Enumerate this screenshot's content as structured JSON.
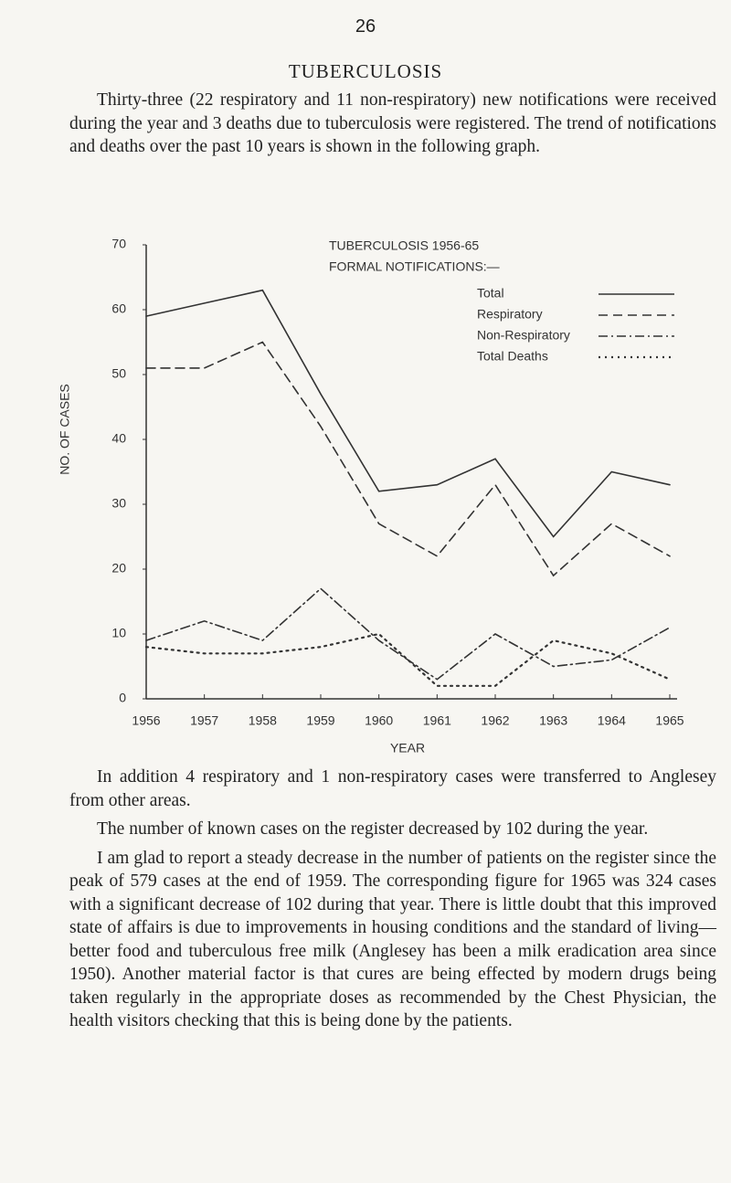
{
  "page_number": "26",
  "title": "TUBERCULOSIS",
  "intro": "Thirty-three (22 respiratory and 11 non-respiratory) new notifications were received during the year and 3 deaths due to tuberculosis were registered. The trend of notifications and deaths over the past 10 years is shown in the following graph.",
  "chart_data": {
    "type": "line",
    "title": "TUBERCULOSIS 1956-65",
    "subtitle": "FORMAL NOTIFICATIONS:—",
    "x_label": "YEAR",
    "y_label": "NO. OF CASES",
    "x": [
      1956,
      1957,
      1958,
      1959,
      1960,
      1961,
      1962,
      1963,
      1964,
      1965
    ],
    "xlim": [
      1956,
      1965
    ],
    "xticks": [
      1956,
      1957,
      1958,
      1959,
      1960,
      1961,
      1962,
      1963,
      1964,
      1965
    ],
    "ylim": [
      0,
      70
    ],
    "yticks": [
      0,
      10,
      20,
      30,
      40,
      50,
      60,
      70
    ],
    "legend": "upper right",
    "series": [
      {
        "name": "Total",
        "color": "#333333",
        "dash": "solid",
        "values": [
          59,
          61,
          63,
          47,
          32,
          33,
          37,
          25,
          35,
          33
        ]
      },
      {
        "name": "Respiratory",
        "color": "#333333",
        "dash": "dashed",
        "values": [
          51,
          51,
          55,
          42,
          27,
          22,
          33,
          19,
          27,
          22
        ]
      },
      {
        "name": "Non-Respiratory",
        "color": "#333333",
        "dash": "dash-dot",
        "values": [
          9,
          12,
          9,
          17,
          9,
          3,
          10,
          5,
          6,
          11
        ]
      },
      {
        "name": "Total Deaths",
        "color": "#333333",
        "dash": "dotted",
        "values": [
          8,
          7,
          7,
          8,
          10,
          2,
          2,
          9,
          7,
          3
        ]
      }
    ]
  },
  "paragraphs": [
    "In addition 4 respiratory and 1 non-respiratory cases were transferred to Anglesey from other areas.",
    "The number of known cases on the register decreased by 102 during the year.",
    "I am glad to report a steady decrease in the number of patients on the register since the peak of 579 cases at the end of 1959. The corresponding figure for 1965 was 324 cases with a significant decrease of 102 during that year. There is little doubt that this improved state of affairs is due to improvements in housing conditions and the standard of living—better food and tuberculous free milk (Anglesey has been a milk eradication area since 1950). Another material factor is that cures are being effected by modern drugs being taken regularly in the appropriate doses as recommended by the Chest Physician, the health visitors checking that this is being done by the patients."
  ]
}
